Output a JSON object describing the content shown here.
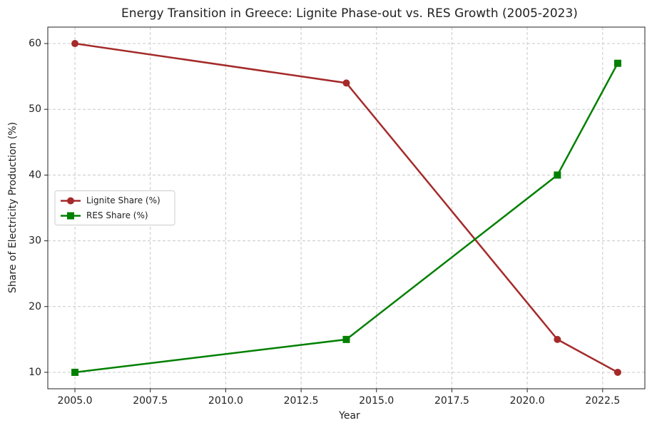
{
  "chart_data": {
    "type": "line",
    "title": "Energy Transition in Greece: Lignite Phase-out vs. RES Growth (2005-2023)",
    "x_label": "Year",
    "y_label": "Share of Electricity Production (%)",
    "x": [
      2005,
      2014,
      2021,
      2023
    ],
    "series": [
      {
        "name": "Lignite Share (%)",
        "color": "#a52a2a",
        "marker": "circle",
        "values": [
          60,
          54,
          15,
          10
        ]
      },
      {
        "name": "RES Share (%)",
        "color": "#008000",
        "marker": "square",
        "values": [
          10,
          15,
          40,
          57
        ]
      }
    ],
    "xlim": [
      2004.1,
      2023.9
    ],
    "xticks": [
      {
        "value": 2005,
        "label": "2005.0"
      },
      {
        "value": 2007.5,
        "label": "2007.5"
      },
      {
        "value": 2010,
        "label": "2010.0"
      },
      {
        "value": 2012.5,
        "label": "2012.5"
      },
      {
        "value": 2015,
        "label": "2015.0"
      },
      {
        "value": 2017.5,
        "label": "2017.5"
      },
      {
        "value": 2020,
        "label": "2020.0"
      },
      {
        "value": 2022.5,
        "label": "2022.5"
      }
    ],
    "ylim": [
      7.5,
      62.5
    ],
    "yticks": [
      10,
      20,
      30,
      40,
      50,
      60
    ],
    "grid": true,
    "legend": "center left"
  }
}
